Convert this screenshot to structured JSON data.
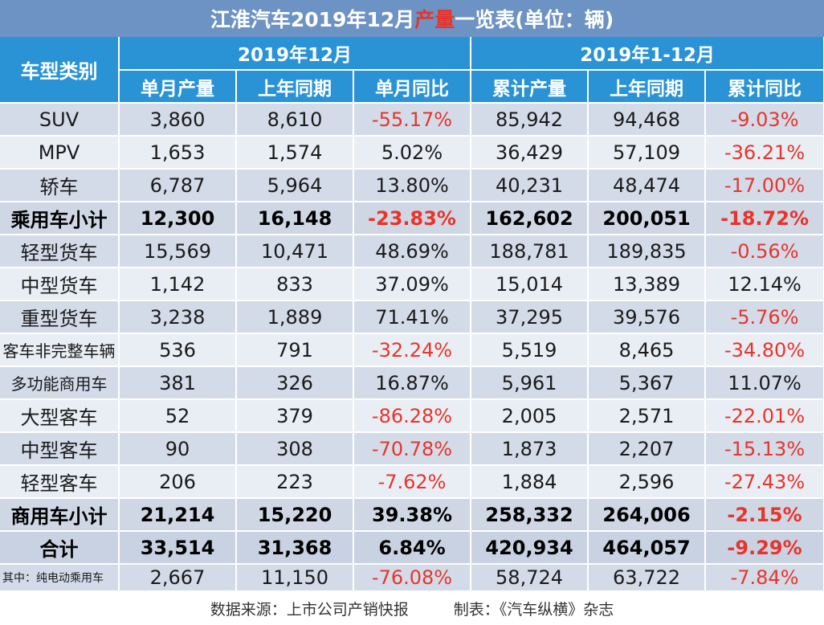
{
  "title": {
    "prefix": "江淮汽车2019年12月",
    "highlight": "产量",
    "suffix": "一览表(单位：辆)"
  },
  "header": {
    "category": "车型类别",
    "period_month": "2019年12月",
    "period_ytd": "2019年1-12月",
    "columns": [
      "单月产量",
      "上年同期",
      "单月同比",
      "累计产量",
      "上年同期",
      "累计同比"
    ]
  },
  "rows": [
    {
      "name": "SUV",
      "values": [
        "3,860",
        "8,610",
        "-55.17%",
        "85,942",
        "94,468",
        "-9.03%"
      ]
    },
    {
      "name": "MPV",
      "values": [
        "1,653",
        "1,574",
        "5.02%",
        "36,429",
        "57,109",
        "-36.21%"
      ]
    },
    {
      "name": "轿车",
      "values": [
        "6,787",
        "5,964",
        "13.80%",
        "40,231",
        "48,474",
        "-17.00%"
      ]
    },
    {
      "name": "乘用车小计",
      "values": [
        "12,300",
        "16,148",
        "-23.83%",
        "162,602",
        "200,051",
        "-18.72%"
      ]
    },
    {
      "name": "轻型货车",
      "values": [
        "15,569",
        "10,471",
        "48.69%",
        "188,781",
        "189,835",
        "-0.56%"
      ]
    },
    {
      "name": "中型货车",
      "values": [
        "1,142",
        "833",
        "37.09%",
        "15,014",
        "13,389",
        "12.14%"
      ]
    },
    {
      "name": "重型货车",
      "values": [
        "3,238",
        "1,889",
        "71.41%",
        "37,295",
        "39,576",
        "-5.76%"
      ]
    },
    {
      "name": "客车非完整车辆",
      "values": [
        "536",
        "791",
        "-32.24%",
        "5,519",
        "8,465",
        "-34.80%"
      ]
    },
    {
      "name": "多功能商用车",
      "values": [
        "381",
        "326",
        "16.87%",
        "5,961",
        "5,367",
        "11.07%"
      ]
    },
    {
      "name": "大型客车",
      "values": [
        "52",
        "379",
        "-86.28%",
        "2,005",
        "2,571",
        "-22.01%"
      ]
    },
    {
      "name": "中型客车",
      "values": [
        "90",
        "308",
        "-70.78%",
        "1,873",
        "2,207",
        "-15.13%"
      ]
    },
    {
      "name": "轻型客车",
      "values": [
        "206",
        "223",
        "-7.62%",
        "1,884",
        "2,596",
        "-27.43%"
      ]
    },
    {
      "name": "商用车小计",
      "values": [
        "21,214",
        "15,220",
        "39.38%",
        "258,332",
        "264,006",
        "-2.15%"
      ]
    },
    {
      "name": "合计",
      "values": [
        "33,514",
        "31,368",
        "6.84%",
        "420,934",
        "464,057",
        "-9.29%"
      ]
    },
    {
      "name": "其中：纯电动乘用车",
      "values": [
        "2,667",
        "11,150",
        "-76.08%",
        "58,724",
        "63,722",
        "-7.84%"
      ]
    }
  ],
  "footer": {
    "source": "数据来源：上市公司产销快报",
    "made_by": "制表：《汽车纵横》杂志"
  },
  "colors": {
    "header_blue": "#2a93d5",
    "title_blue": "#6d93c4",
    "negative_red": "#e8342a"
  }
}
